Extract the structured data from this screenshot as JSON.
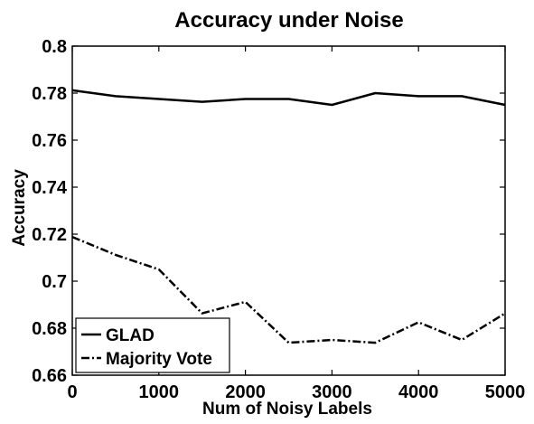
{
  "chart_data": {
    "type": "line",
    "title": "Accuracy under Noise",
    "xlabel": "Num of Noisy Labels",
    "ylabel": "Accuracy",
    "xlim": [
      0,
      5000
    ],
    "ylim": [
      0.66,
      0.8
    ],
    "x_ticks": [
      0,
      1000,
      2000,
      3000,
      4000,
      5000
    ],
    "x_tick_labels": [
      "0",
      "1000",
      "2000",
      "3000",
      "4000",
      "5000"
    ],
    "y_ticks": [
      0.66,
      0.68,
      0.7,
      0.72,
      0.74,
      0.76,
      0.78,
      0.8
    ],
    "y_tick_labels": [
      "0.66",
      "0.68",
      "0.7",
      "0.72",
      "0.74",
      "0.76",
      "0.78",
      "0.8"
    ],
    "grid": false,
    "legend_position": "bottom-left",
    "x": [
      0,
      500,
      1000,
      1500,
      2000,
      2500,
      3000,
      3500,
      4000,
      4500,
      5000
    ],
    "series": [
      {
        "name": "GLAD",
        "style": "solid",
        "color": "#000000",
        "values": [
          0.7812,
          0.7787,
          0.7775,
          0.7763,
          0.7775,
          0.7775,
          0.775,
          0.78,
          0.7787,
          0.7787,
          0.775
        ]
      },
      {
        "name": "Majority Vote",
        "style": "dash-dot",
        "color": "#000000",
        "values": [
          0.7188,
          0.7112,
          0.705,
          0.6863,
          0.6912,
          0.6738,
          0.675,
          0.6738,
          0.6825,
          0.675,
          0.6863
        ]
      }
    ]
  }
}
